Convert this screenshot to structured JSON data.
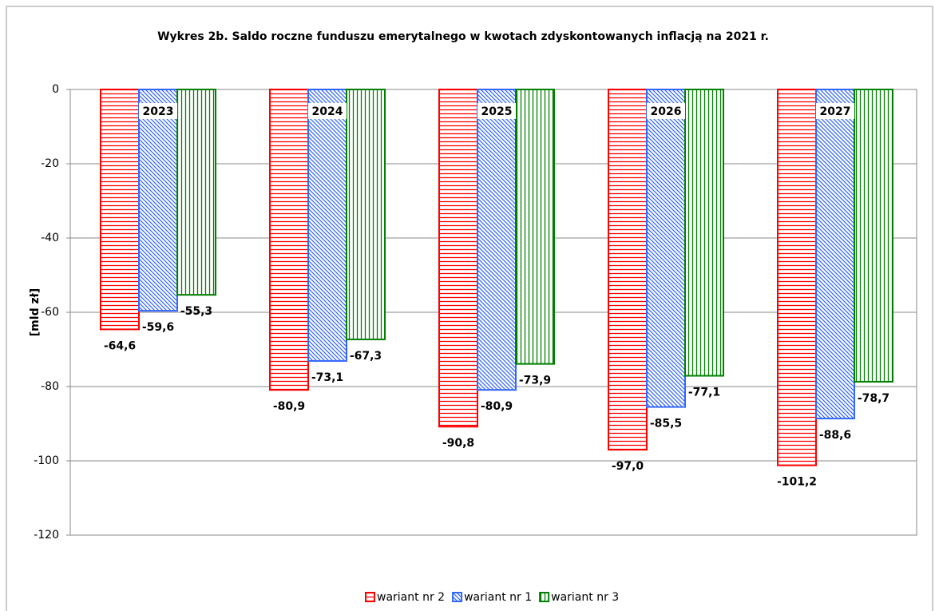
{
  "chart_data": {
    "type": "bar",
    "title": "Wykres 2b. Saldo roczne funduszu emerytalnego w kwotach zdyskontowanych inflacją na 2021 r.",
    "y_label": "[mld zł]",
    "categories": [
      "2023",
      "2024",
      "2025",
      "2026",
      "2027"
    ],
    "series": [
      {
        "name": "wariant nr 2",
        "color": "#ff0000",
        "pattern": "horizontal",
        "values": [
          -64.6,
          -80.9,
          -90.8,
          -97.0,
          -101.2
        ],
        "value_labels": [
          "-64,6",
          "-80,9",
          "-90,8",
          "-97,0",
          "-101,2"
        ]
      },
      {
        "name": "wariant nr 1",
        "color": "#3366ff",
        "pattern": "diagonal",
        "values": [
          -59.6,
          -73.1,
          -80.9,
          -85.5,
          -88.6
        ],
        "value_labels": [
          "-59,6",
          "-73,1",
          "-80,9",
          "-85,5",
          "-88,6"
        ]
      },
      {
        "name": "wariant nr 3",
        "color": "#008000",
        "pattern": "vertical",
        "values": [
          -55.3,
          -67.3,
          -73.9,
          -77.1,
          -78.7
        ],
        "value_labels": [
          "-55,3",
          "-67,3",
          "-73,9",
          "-77,1",
          "-78,7"
        ]
      }
    ],
    "ylim": [
      -120,
      0
    ],
    "yticks": [
      0,
      -20,
      -40,
      -60,
      -80,
      -100,
      -120
    ],
    "grid": true,
    "legend": "bottom"
  }
}
